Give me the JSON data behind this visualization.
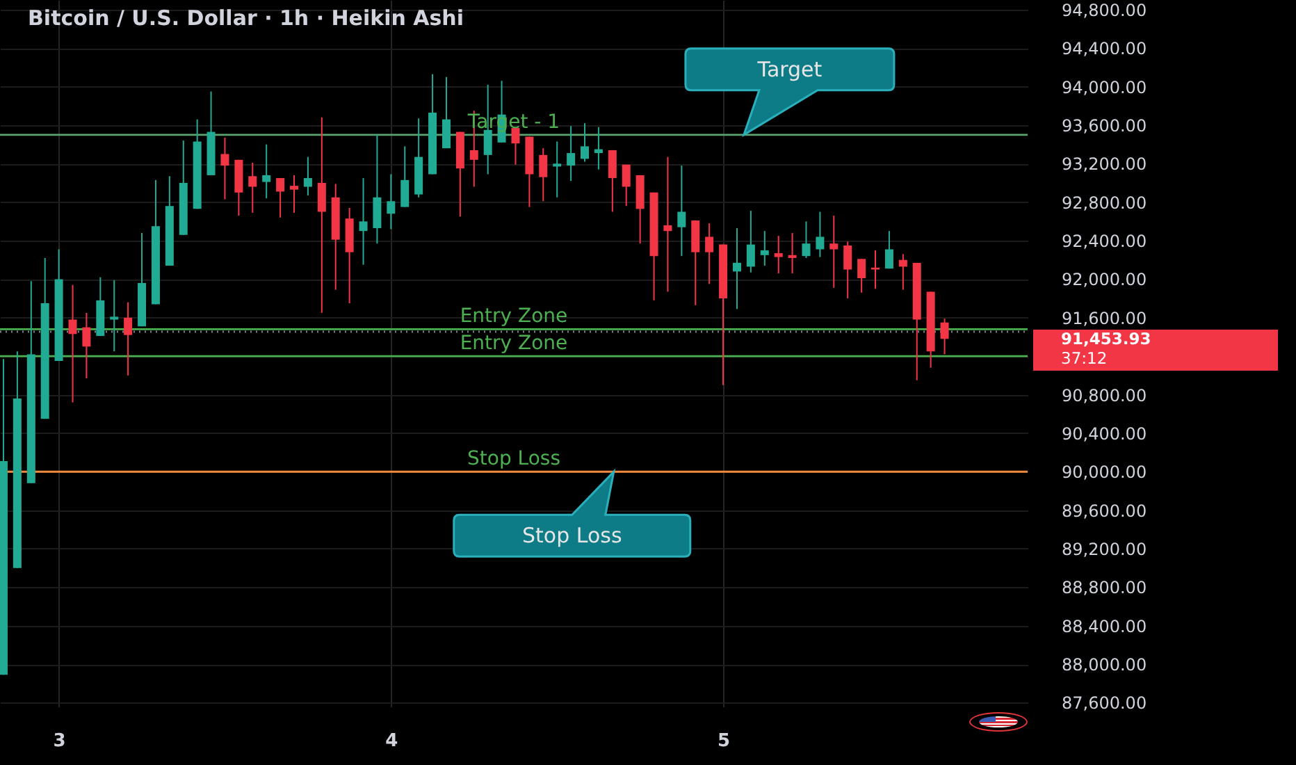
{
  "chart_data": {
    "type": "candlestick",
    "title": "Bitcoin / U.S. Dollar · 1h · Heikin Ashi",
    "x": [
      2.8333,
      2.875,
      2.9167,
      2.9583,
      3,
      3.0417,
      3.0833,
      3.125,
      3.1667,
      3.2083,
      3.25,
      3.2917,
      3.3333,
      3.375,
      3.4167,
      3.4583,
      3.5,
      3.5417,
      3.5833,
      3.625,
      3.6667,
      3.7083,
      3.75,
      3.7917,
      3.8333,
      3.875,
      3.9167,
      3.9583,
      4,
      4.0417,
      4.0833,
      4.125,
      4.1667,
      4.2083,
      4.25,
      4.2917,
      4.3333,
      4.375,
      4.4167,
      4.4583,
      4.5,
      4.5417,
      4.5833,
      4.625,
      4.6667,
      4.7083,
      4.75,
      4.7917,
      4.8333,
      4.875,
      4.9167,
      4.9583,
      5,
      5.0417,
      5.0833,
      5.125,
      5.1667,
      5.2083,
      5.25,
      5.2917,
      5.3333,
      5.375,
      5.4167,
      5.4583,
      5.5,
      5.5417,
      5.5833,
      5.625,
      5.6667
    ],
    "ohlc": [
      [
        87890,
        91170,
        87890,
        90110
      ],
      [
        89000,
        91250,
        89000,
        90760
      ],
      [
        89880,
        91980,
        89880,
        91220
      ],
      [
        90550,
        92220,
        90550,
        91750
      ],
      [
        91150,
        92310,
        91150,
        92000
      ],
      [
        91580,
        91940,
        90720,
        91430
      ],
      [
        91500,
        91650,
        90970,
        91300
      ],
      [
        91410,
        92020,
        91410,
        91780
      ],
      [
        91580,
        91990,
        91250,
        91610
      ],
      [
        91600,
        91760,
        91000,
        91420
      ],
      [
        91510,
        92480,
        91510,
        91960
      ],
      [
        91740,
        93030,
        91740,
        92550
      ],
      [
        92140,
        93070,
        92140,
        92760
      ],
      [
        92460,
        93440,
        92460,
        93000
      ],
      [
        92730,
        93660,
        92730,
        93430
      ],
      [
        93080,
        93950,
        93080,
        93530
      ],
      [
        93300,
        93470,
        92830,
        93180
      ],
      [
        93240,
        93240,
        92660,
        92900
      ],
      [
        93070,
        93210,
        92690,
        92960
      ],
      [
        93010,
        93400,
        92840,
        93080
      ],
      [
        93050,
        93050,
        92640,
        92910
      ],
      [
        92970,
        93080,
        92690,
        92930
      ],
      [
        92960,
        93270,
        92870,
        93050
      ],
      [
        93000,
        93680,
        91650,
        92700
      ],
      [
        92850,
        92990,
        91890,
        92410
      ],
      [
        92630,
        92740,
        91750,
        92280
      ],
      [
        92500,
        93050,
        92150,
        92600
      ],
      [
        92530,
        93500,
        92370,
        92850
      ],
      [
        92680,
        93090,
        92520,
        92810
      ],
      [
        92750,
        93380,
        92750,
        93030
      ],
      [
        92880,
        93670,
        92850,
        93270
      ],
      [
        93090,
        94130,
        93090,
        93730
      ],
      [
        93360,
        94100,
        93360,
        93660
      ],
      [
        93530,
        93530,
        92650,
        93150
      ],
      [
        93340,
        93750,
        92960,
        93240
      ],
      [
        93290,
        94020,
        93090,
        93550
      ],
      [
        93420,
        94060,
        93420,
        93710
      ],
      [
        93570,
        93570,
        93190,
        93410
      ],
      [
        93480,
        93480,
        92750,
        93090
      ],
      [
        93290,
        93360,
        92810,
        93060
      ],
      [
        93170,
        93430,
        92850,
        93200
      ],
      [
        93180,
        93590,
        93020,
        93310
      ],
      [
        93250,
        93620,
        93220,
        93380
      ],
      [
        93310,
        93580,
        93140,
        93350
      ],
      [
        93340,
        93340,
        92700,
        93050
      ],
      [
        93190,
        93190,
        92760,
        92960
      ],
      [
        93080,
        93080,
        92370,
        92730
      ],
      [
        92900,
        92900,
        91780,
        92240
      ],
      [
        92560,
        93270,
        91870,
        92500
      ],
      [
        92540,
        93180,
        92240,
        92700
      ],
      [
        92610,
        92610,
        91730,
        92280
      ],
      [
        92440,
        92580,
        91950,
        92280
      ],
      [
        92360,
        92360,
        90900,
        91800
      ],
      [
        92080,
        92530,
        91690,
        92170
      ],
      [
        92130,
        92710,
        92070,
        92360
      ],
      [
        92250,
        92500,
        92140,
        92300
      ],
      [
        92270,
        92450,
        92060,
        92230
      ],
      [
        92250,
        92480,
        92060,
        92220
      ],
      [
        92240,
        92600,
        92220,
        92370
      ],
      [
        92310,
        92700,
        92230,
        92440
      ],
      [
        92370,
        92660,
        91910,
        92310
      ],
      [
        92350,
        92390,
        91800,
        92100
      ],
      [
        92210,
        92210,
        91860,
        92010
      ],
      [
        92120,
        92300,
        91900,
        92100
      ],
      [
        92110,
        92500,
        92110,
        92310
      ],
      [
        92200,
        92260,
        91890,
        92130
      ],
      [
        92170,
        92170,
        90950,
        91580
      ],
      [
        91870,
        91870,
        91080,
        91250
      ],
      [
        91550,
        91590,
        91220,
        91380
      ]
    ],
    "colors": [
      "#22ab94",
      "#22ab94",
      "#22ab94",
      "#22ab94",
      "#22ab94",
      "#f23645",
      "#f23645",
      "#22ab94",
      "#22ab94",
      "#f23645",
      "#22ab94",
      "#22ab94",
      "#22ab94",
      "#22ab94",
      "#22ab94",
      "#22ab94",
      "#f23645",
      "#f23645",
      "#f23645",
      "#22ab94",
      "#f23645",
      "#f23645",
      "#22ab94",
      "#f23645",
      "#f23645",
      "#f23645",
      "#22ab94",
      "#22ab94",
      "#22ab94",
      "#22ab94",
      "#22ab94",
      "#22ab94",
      "#22ab94",
      "#f23645",
      "#f23645",
      "#22ab94",
      "#22ab94",
      "#f23645",
      "#f23645",
      "#f23645",
      "#22ab94",
      "#22ab94",
      "#22ab94",
      "#22ab94",
      "#f23645",
      "#f23645",
      "#f23645",
      "#f23645",
      "#f23645",
      "#22ab94",
      "#f23645",
      "#f23645",
      "#f23645",
      "#22ab94",
      "#22ab94",
      "#22ab94",
      "#f23645",
      "#f23645",
      "#22ab94",
      "#22ab94",
      "#f23645",
      "#f23645",
      "#f23645",
      "#f23645",
      "#22ab94",
      "#f23645",
      "#f23645",
      "#f23645",
      "#f23645"
    ],
    "xlim": [
      2.8229,
      5.9167
    ],
    "xticks": [
      3,
      4,
      5
    ],
    "ylim": [
      87560,
      94900
    ],
    "yticks": [
      {
        "value": 87600,
        "label": "87,600.00"
      },
      {
        "value": 88000,
        "label": "88,000.00"
      },
      {
        "value": 88400,
        "label": "88,400.00"
      },
      {
        "value": 88800,
        "label": "88,800.00"
      },
      {
        "value": 89200,
        "label": "89,200.00"
      },
      {
        "value": 89600,
        "label": "89,600.00"
      },
      {
        "value": 90000,
        "label": "90,000.00"
      },
      {
        "value": 90400,
        "label": "90,400.00"
      },
      {
        "value": 90800,
        "label": "90,800.00"
      },
      {
        "value": 91200,
        "label": null
      },
      {
        "value": 91600,
        "label": "91,600.00"
      },
      {
        "value": 92000,
        "label": "92,000.00"
      },
      {
        "value": 92400,
        "label": "92,400.00"
      },
      {
        "value": 92800,
        "label": "92,800.00"
      },
      {
        "value": 93200,
        "label": "93,200.00"
      },
      {
        "value": 93600,
        "label": "93,600.00"
      },
      {
        "value": 94000,
        "label": "94,000.00"
      },
      {
        "value": 94400,
        "label": "94,400.00"
      },
      {
        "value": 94800,
        "label": "94,800.00"
      }
    ],
    "grid": true,
    "ref_lines": [
      {
        "axis": "y",
        "value": 93500,
        "label": "Target - 1",
        "color": "#5da36f"
      },
      {
        "axis": "y",
        "value": 91480,
        "label": "Entry Zone",
        "color": "#4caf50"
      },
      {
        "axis": "y",
        "value": 91200,
        "label": "Entry Zone",
        "color": "#4caf50"
      },
      {
        "axis": "y",
        "value": 90000,
        "label": "Stop Loss",
        "color": "#f0883e"
      },
      {
        "axis": "y",
        "value": 91453.93,
        "label": "91,453.93",
        "color": "#787b86",
        "line_style": "dotted"
      }
    ],
    "annotations": [
      {
        "text": "Target",
        "x": 5.0625,
        "y": 93500
      },
      {
        "text": "Stop Loss",
        "x": 4.6708,
        "y": 90000
      },
      "37:12"
    ]
  }
}
